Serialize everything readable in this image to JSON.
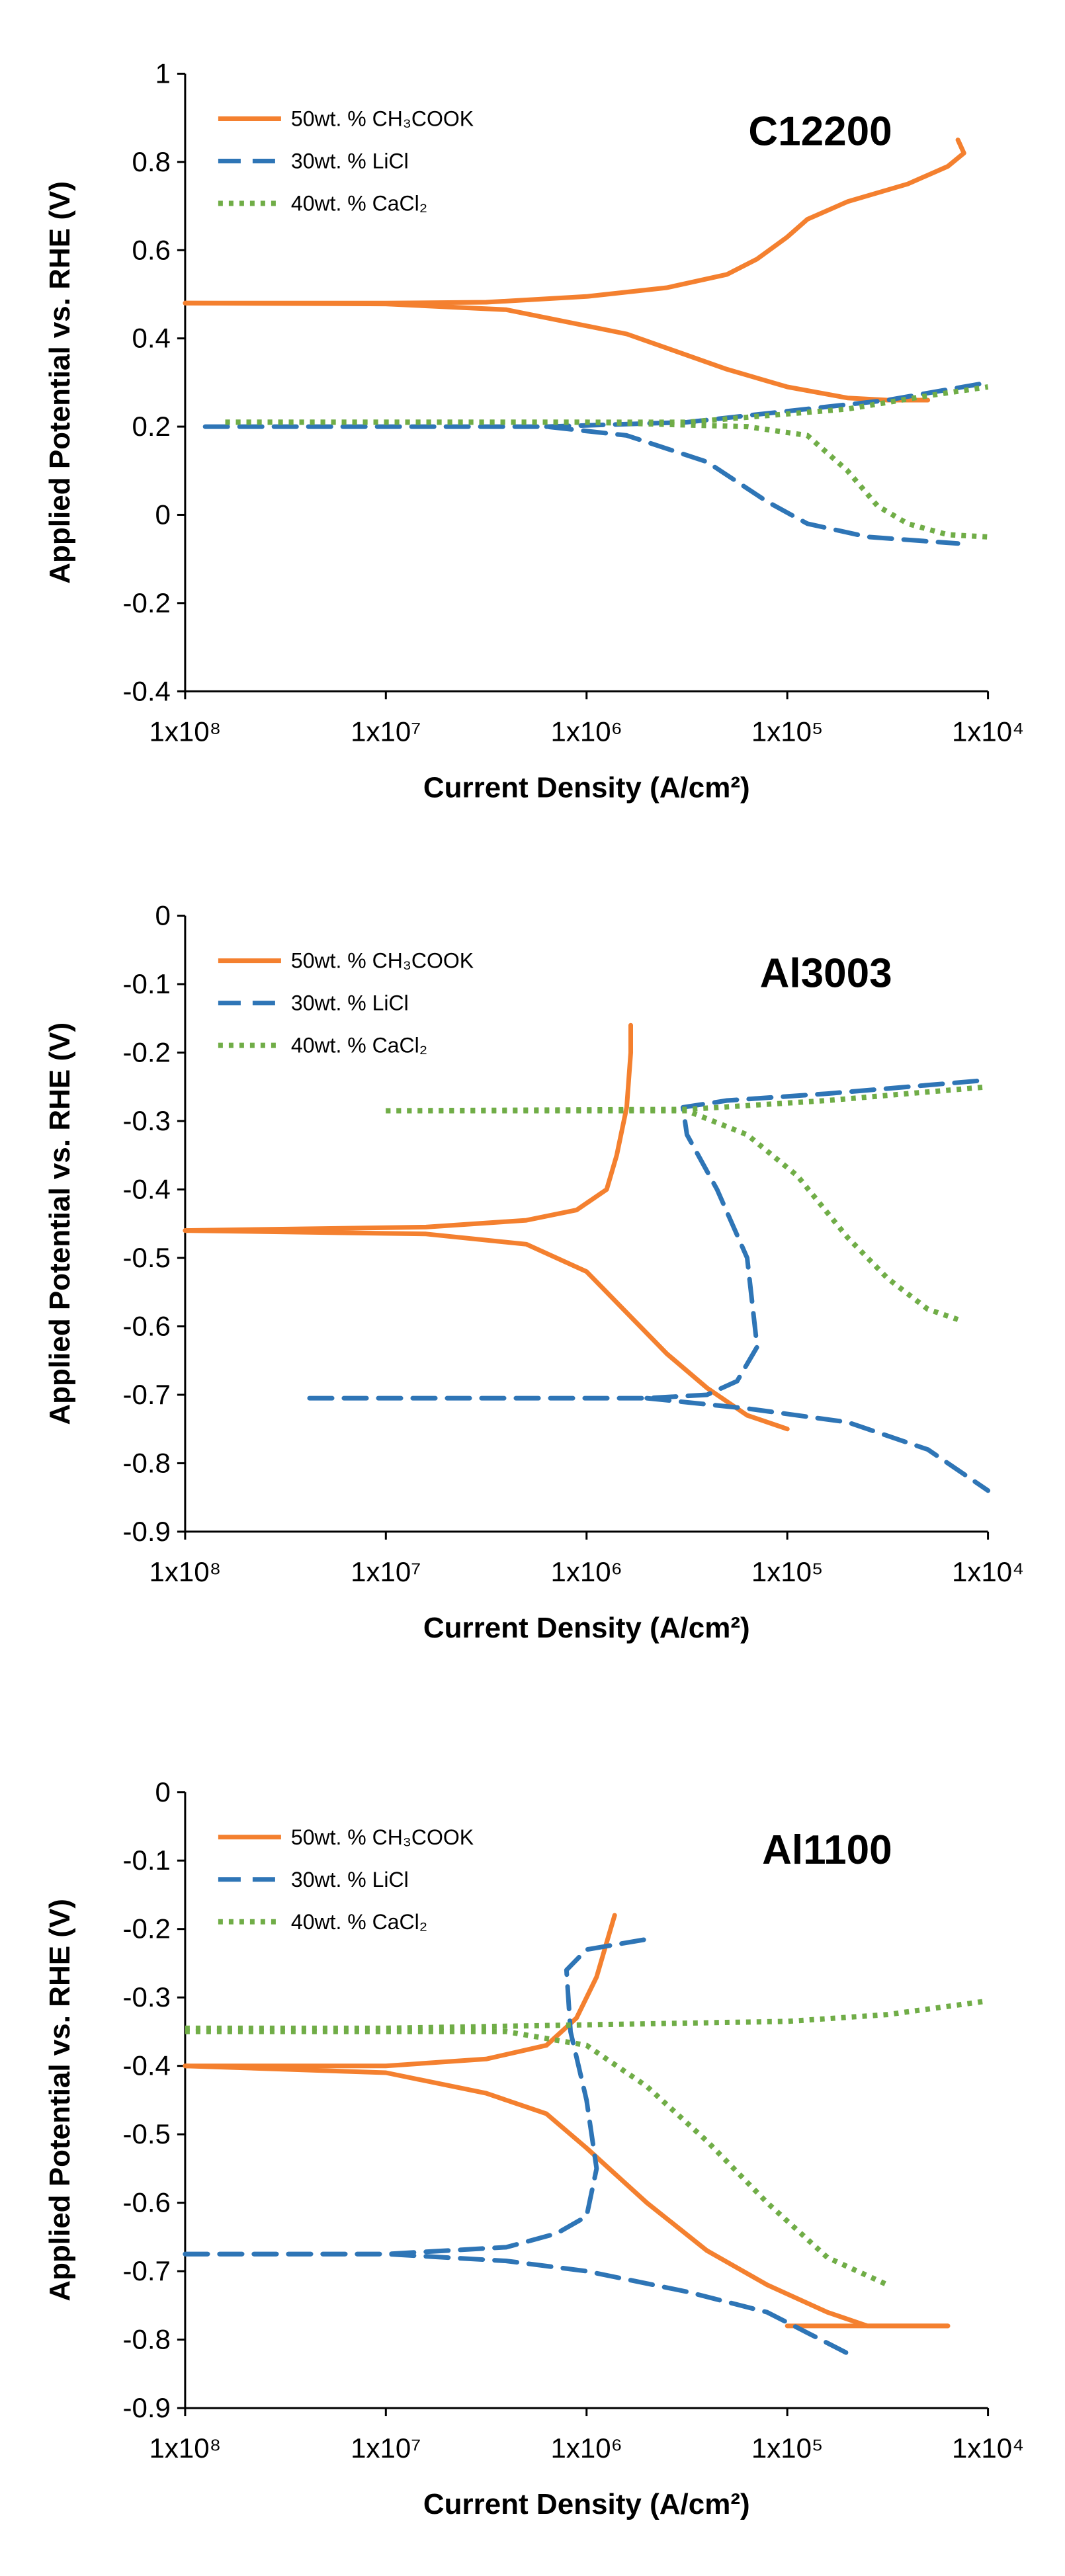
{
  "chart_data": [
    {
      "type": "line",
      "title": "C12200",
      "xlabel": "Current Density (A/cm²)",
      "ylabel": "Applied Potential vs. RHE (V)",
      "xscale": "log",
      "x_tick_labels": [
        "1x10⁸",
        "1x10⁷",
        "1x10⁶",
        "1x10⁵",
        "1x10⁴"
      ],
      "ylim": [
        -0.4,
        1.0
      ],
      "y_ticks": [
        1,
        0.8,
        0.6,
        0.4,
        0.2,
        0,
        -0.2,
        -0.4
      ],
      "y_tick_labels": [
        "1",
        "0.8",
        "0.6",
        "0.4",
        "0.2",
        "0",
        "-0.2",
        "-0.4"
      ],
      "legend_position": "top-left",
      "series": [
        {
          "name": "50wt. % CH₃COOK",
          "color": "#f4802f",
          "style": "solid",
          "segments": [
            [
              [
                0,
                0.48
              ],
              [
                1,
                0.48
              ],
              [
                1.5,
                0.482
              ],
              [
                2,
                0.495
              ],
              [
                2.4,
                0.515
              ],
              [
                2.7,
                0.545
              ],
              [
                2.85,
                0.58
              ],
              [
                3.0,
                0.63
              ],
              [
                3.1,
                0.67
              ],
              [
                3.3,
                0.71
              ],
              [
                3.6,
                0.75
              ],
              [
                3.8,
                0.79
              ],
              [
                3.88,
                0.82
              ],
              [
                3.85,
                0.85
              ]
            ],
            [
              [
                0,
                0.48
              ],
              [
                1,
                0.478
              ],
              [
                1.6,
                0.465
              ],
              [
                2.2,
                0.41
              ],
              [
                2.7,
                0.33
              ],
              [
                3.0,
                0.29
              ],
              [
                3.3,
                0.265
              ],
              [
                3.5,
                0.26
              ],
              [
                3.7,
                0.26
              ]
            ]
          ]
        },
        {
          "name": "30wt. % LiCl",
          "color": "#2e75b6",
          "style": "dashed",
          "segments": [
            [
              [
                0.1,
                0.2
              ],
              [
                1,
                0.2
              ],
              [
                1.8,
                0.2
              ],
              [
                2.2,
                0.18
              ],
              [
                2.6,
                0.12
              ],
              [
                2.9,
                0.03
              ],
              [
                3.1,
                -0.02
              ],
              [
                3.4,
                -0.05
              ],
              [
                3.7,
                -0.06
              ],
              [
                3.85,
                -0.065
              ]
            ],
            [
              [
                1.8,
                0.2
              ],
              [
                2.5,
                0.21
              ],
              [
                3.0,
                0.235
              ],
              [
                3.5,
                0.26
              ],
              [
                4.0,
                0.3
              ]
            ]
          ]
        },
        {
          "name": "40wt. % CaCl₂",
          "color": "#70ad47",
          "style": "dotted",
          "segments": [
            [
              [
                0.2,
                0.21
              ],
              [
                1,
                0.21
              ],
              [
                2,
                0.21
              ],
              [
                2.8,
                0.2
              ],
              [
                3.1,
                0.18
              ],
              [
                3.3,
                0.1
              ],
              [
                3.45,
                0.02
              ],
              [
                3.6,
                -0.02
              ],
              [
                3.8,
                -0.045
              ],
              [
                4.0,
                -0.05
              ]
            ],
            [
              [
                0.2,
                0.21
              ],
              [
                2.5,
                0.21
              ],
              [
                3.3,
                0.24
              ],
              [
                3.7,
                0.27
              ],
              [
                4.0,
                0.29
              ]
            ]
          ]
        }
      ]
    },
    {
      "type": "line",
      "title": "Al3003",
      "xlabel": "Current Density (A/cm²)",
      "ylabel": "Applied Potential vs. RHE (V)",
      "xscale": "log",
      "x_tick_labels": [
        "1x10⁸",
        "1x10⁷",
        "1x10⁶",
        "1x10⁵",
        "1x10⁴"
      ],
      "ylim": [
        -0.9,
        0
      ],
      "y_ticks": [
        0,
        -0.1,
        -0.2,
        -0.3,
        -0.4,
        -0.5,
        -0.6,
        -0.7,
        -0.8,
        -0.9
      ],
      "y_tick_labels": [
        "0",
        "-0.1",
        "-0.2",
        "-0.3",
        "-0.4",
        "-0.5",
        "-0.6",
        "-0.7",
        "-0.8",
        "-0.9"
      ],
      "legend_position": "top-left",
      "series": [
        {
          "name": "50wt. % CH₃COOK",
          "color": "#f4802f",
          "style": "solid",
          "segments": [
            [
              [
                0,
                -0.46
              ],
              [
                1.2,
                -0.455
              ],
              [
                1.7,
                -0.445
              ],
              [
                1.95,
                -0.43
              ],
              [
                2.1,
                -0.4
              ],
              [
                2.15,
                -0.35
              ],
              [
                2.2,
                -0.28
              ],
              [
                2.22,
                -0.2
              ],
              [
                2.22,
                -0.16
              ]
            ],
            [
              [
                0,
                -0.46
              ],
              [
                1.2,
                -0.465
              ],
              [
                1.7,
                -0.48
              ],
              [
                2.0,
                -0.52
              ],
              [
                2.2,
                -0.58
              ],
              [
                2.4,
                -0.64
              ],
              [
                2.6,
                -0.69
              ],
              [
                2.8,
                -0.73
              ],
              [
                2.95,
                -0.745
              ],
              [
                3.0,
                -0.75
              ]
            ]
          ]
        },
        {
          "name": "30wt. % LiCl",
          "color": "#2e75b6",
          "style": "dashed",
          "segments": [
            [
              [
                0.62,
                -0.705
              ],
              [
                1.5,
                -0.705
              ],
              [
                2.3,
                -0.705
              ],
              [
                2.6,
                -0.7
              ],
              [
                2.75,
                -0.68
              ],
              [
                2.85,
                -0.63
              ],
              [
                2.8,
                -0.5
              ],
              [
                2.65,
                -0.4
              ],
              [
                2.5,
                -0.32
              ],
              [
                2.48,
                -0.28
              ],
              [
                2.7,
                -0.27
              ],
              [
                3.2,
                -0.26
              ],
              [
                4.0,
                -0.24
              ]
            ],
            [
              [
                2.3,
                -0.705
              ],
              [
                2.8,
                -0.72
              ],
              [
                3.3,
                -0.74
              ],
              [
                3.7,
                -0.78
              ],
              [
                4.0,
                -0.84
              ]
            ]
          ]
        },
        {
          "name": "40wt. % CaCl₂",
          "color": "#70ad47",
          "style": "dotted",
          "segments": [
            [
              [
                1.0,
                -0.285
              ],
              [
                2.0,
                -0.285
              ],
              [
                2.5,
                -0.285
              ],
              [
                2.8,
                -0.32
              ],
              [
                3.05,
                -0.38
              ],
              [
                3.3,
                -0.47
              ],
              [
                3.5,
                -0.53
              ],
              [
                3.7,
                -0.575
              ],
              [
                3.85,
                -0.59
              ]
            ],
            [
              [
                1.0,
                -0.285
              ],
              [
                2.5,
                -0.283
              ],
              [
                3.2,
                -0.27
              ],
              [
                4.0,
                -0.25
              ]
            ]
          ]
        }
      ]
    },
    {
      "type": "line",
      "title": "Al1100",
      "xlabel": "Current Density (A/cm²)",
      "ylabel": "Applied Potential vs. RHE (V)",
      "xscale": "log",
      "x_tick_labels": [
        "1x10⁸",
        "1x10⁷",
        "1x10⁶",
        "1x10⁵",
        "1x10⁴"
      ],
      "ylim": [
        -0.9,
        0
      ],
      "y_ticks": [
        0,
        -0.1,
        -0.2,
        -0.3,
        -0.4,
        -0.5,
        -0.6,
        -0.7,
        -0.8,
        -0.9
      ],
      "y_tick_labels": [
        "0",
        "-0.1",
        "-0.2",
        "-0.3",
        "-0.4",
        "-0.5",
        "-0.6",
        "-0.7",
        "-0.8",
        "-0.9"
      ],
      "legend_position": "top-left",
      "series": [
        {
          "name": "50wt. % CH₃COOK",
          "color": "#f4802f",
          "style": "solid",
          "segments": [
            [
              [
                0,
                -0.4
              ],
              [
                1,
                -0.4
              ],
              [
                1.5,
                -0.39
              ],
              [
                1.8,
                -0.37
              ],
              [
                1.95,
                -0.33
              ],
              [
                2.05,
                -0.27
              ],
              [
                2.12,
                -0.2
              ],
              [
                2.14,
                -0.18
              ]
            ],
            [
              [
                0,
                -0.4
              ],
              [
                1,
                -0.41
              ],
              [
                1.5,
                -0.44
              ],
              [
                1.8,
                -0.47
              ],
              [
                2.0,
                -0.52
              ],
              [
                2.3,
                -0.6
              ],
              [
                2.6,
                -0.67
              ],
              [
                2.9,
                -0.72
              ],
              [
                3.2,
                -0.76
              ],
              [
                3.4,
                -0.78
              ],
              [
                3.8,
                -0.78
              ]
            ],
            [
              [
                3.0,
                -0.78
              ],
              [
                3.8,
                -0.78
              ]
            ]
          ]
        },
        {
          "name": "30wt. % LiCl",
          "color": "#2e75b6",
          "style": "dashed",
          "segments": [
            [
              [
                0,
                -0.675
              ],
              [
                1,
                -0.675
              ],
              [
                1.6,
                -0.665
              ],
              [
                1.85,
                -0.645
              ],
              [
                2.0,
                -0.62
              ],
              [
                2.05,
                -0.55
              ],
              [
                2.0,
                -0.45
              ],
              [
                1.92,
                -0.35
              ],
              [
                1.9,
                -0.26
              ],
              [
                2.0,
                -0.23
              ],
              [
                2.3,
                -0.215
              ]
            ],
            [
              [
                0,
                -0.675
              ],
              [
                1,
                -0.675
              ],
              [
                1.6,
                -0.685
              ],
              [
                2.0,
                -0.7
              ],
              [
                2.5,
                -0.73
              ],
              [
                2.9,
                -0.76
              ],
              [
                3.1,
                -0.79
              ],
              [
                3.3,
                -0.82
              ]
            ]
          ]
        },
        {
          "name": "40wt. % CaCl₂",
          "color": "#70ad47",
          "style": "dotted",
          "segments": [
            [
              [
                0,
                -0.35
              ],
              [
                1.0,
                -0.35
              ],
              [
                1.6,
                -0.35
              ],
              [
                2.0,
                -0.37
              ],
              [
                2.3,
                -0.43
              ],
              [
                2.6,
                -0.51
              ],
              [
                2.9,
                -0.6
              ],
              [
                3.2,
                -0.68
              ],
              [
                3.5,
                -0.72
              ]
            ],
            [
              [
                0,
                -0.345
              ],
              [
                1,
                -0.345
              ],
              [
                2,
                -0.34
              ],
              [
                3,
                -0.335
              ],
              [
                3.5,
                -0.325
              ],
              [
                4.0,
                -0.305
              ]
            ]
          ]
        }
      ]
    }
  ]
}
